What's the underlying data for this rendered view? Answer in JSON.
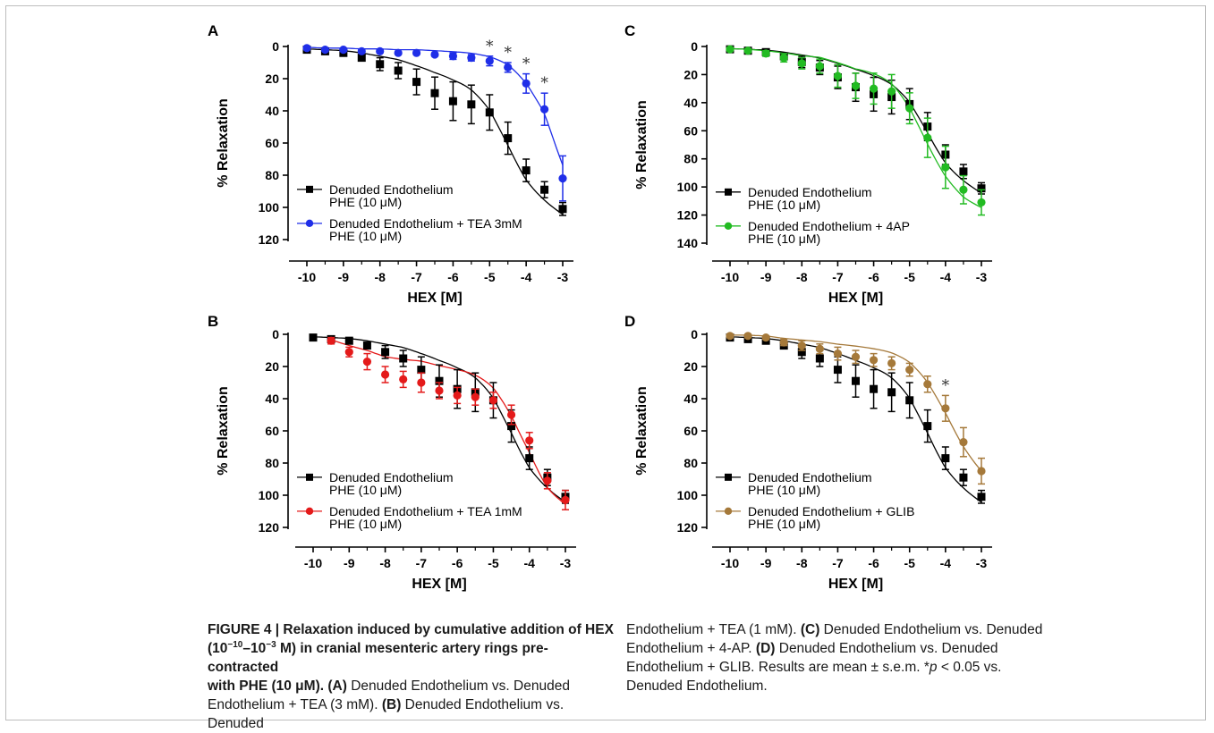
{
  "figure": {
    "caption_title": "FIGURE 4 | Relaxation induced by cumulative addition of HEX",
    "caption_title_2_pre": "(10",
    "caption_title_2_sup1": "−10",
    "caption_title_2_mid": "–10",
    "caption_title_2_sup2": "−3",
    "caption_title_2_post": " M) in cranial mesenteric artery rings pre-contracted",
    "caption_title_3": "with PHE (10 μM).",
    "caption_parts": [
      {
        "tag": "(A)",
        "text": " Denuded Endothelium vs. Denuded Endothelium + TEA (3 mM). "
      },
      {
        "tag": "(B)",
        "text": " Denuded Endothelium vs. Denuded Endothelium + TEA (1 mM). "
      },
      {
        "tag": "(C)",
        "text": " Denuded Endothelium vs. Denuded Endothelium + 4-AP. "
      },
      {
        "tag": "(D)",
        "text": " Denuded Endothelium vs. Denuded Endothelium + GLIB. Results are mean ± s.e.m. *p < 0.05 vs. Denuded Endothelium."
      }
    ],
    "caption_left_lines": [
      " Denuded Endothelium vs. Denuded",
      "Endothelium + TEA (3 mM). ",
      " Denuded Endothelium vs. Denuded"
    ],
    "caption_right_lines": [
      "Endothelium + TEA (1 mM). ",
      " Denuded Endothelium vs. Denuded",
      "Endothelium + 4-AP. ",
      " Denuded Endothelium vs. Denuded",
      "Endothelium + GLIB. Results are mean ± s.e.m. *",
      "p",
      " < 0.05 vs.",
      "Denuded Endothelium."
    ]
  },
  "chart_data": [
    {
      "panel": "A",
      "type": "scatter",
      "xlabel": "HEX [M]",
      "ylabel": "% Relaxation",
      "x_ticks": [
        -10,
        -9,
        -8,
        -7,
        -6,
        -5,
        -4,
        -3
      ],
      "y_ticks": [
        0,
        20,
        40,
        60,
        80,
        100,
        120
      ],
      "xlim": [
        -10,
        -3
      ],
      "ylim": [
        0,
        120
      ],
      "y_inverted": true,
      "legend": "bottom-left",
      "series": [
        {
          "name": "Denuded Endothelium PHE (10 μM)",
          "color": "#000000",
          "marker": "square",
          "x": [
            -10,
            -9.5,
            -9,
            -8.5,
            -8,
            -7.5,
            -7,
            -6.5,
            -6,
            -5.5,
            -5,
            -4.5,
            -4,
            -3.5,
            -3
          ],
          "y": [
            2,
            3,
            4,
            7,
            11,
            15,
            22,
            29,
            34,
            36,
            41,
            57,
            77,
            89,
            101
          ],
          "err": [
            1,
            1,
            2,
            2,
            4,
            5,
            8,
            10,
            12,
            12,
            11,
            10,
            7,
            5,
            4
          ]
        },
        {
          "name": "Denuded Endothelium + TEA 3mM PHE (10 μM)",
          "color": "#1f2ee8",
          "marker": "circle",
          "x": [
            -10,
            -9.5,
            -9,
            -8.5,
            -8,
            -7.5,
            -7,
            -6.5,
            -6,
            -5.5,
            -5,
            -4.5,
            -4,
            -3.5,
            -3
          ],
          "y": [
            1,
            2,
            2,
            3,
            3,
            4,
            4,
            5,
            6,
            7,
            9,
            13,
            23,
            39,
            82
          ],
          "err": [
            1,
            1,
            1,
            1,
            1,
            1,
            1,
            1,
            2,
            2,
            3,
            3,
            6,
            10,
            14
          ]
        }
      ],
      "significance_x": [
        -5,
        -4.5,
        -4,
        -3.5
      ],
      "significance_mark": "*"
    },
    {
      "panel": "B",
      "type": "scatter",
      "xlabel": "HEX [M]",
      "ylabel": "% Relaxation",
      "x_ticks": [
        -10,
        -9,
        -8,
        -7,
        -6,
        -5,
        -4,
        -3
      ],
      "y_ticks": [
        0,
        20,
        40,
        60,
        80,
        100,
        120
      ],
      "xlim": [
        -10,
        -3
      ],
      "ylim": [
        0,
        120
      ],
      "y_inverted": true,
      "legend": "bottom-left",
      "series": [
        {
          "name": "Denuded Endothelium PHE (10 μM)",
          "color": "#000000",
          "marker": "square",
          "x": [
            -10,
            -9.5,
            -9,
            -8.5,
            -8,
            -7.5,
            -7,
            -6.5,
            -6,
            -5.5,
            -5,
            -4.5,
            -4,
            -3.5,
            -3
          ],
          "y": [
            2,
            3,
            4,
            7,
            11,
            15,
            22,
            29,
            34,
            36,
            41,
            57,
            77,
            89,
            101
          ],
          "err": [
            1,
            1,
            2,
            2,
            4,
            5,
            8,
            10,
            12,
            12,
            11,
            10,
            7,
            5,
            4
          ]
        },
        {
          "name": "Denuded Endothelium + TEA 1mM PHE (10 μM)",
          "color": "#e41a1a",
          "marker": "circle",
          "x": [
            -9.5,
            -9,
            -8.5,
            -8,
            -7.5,
            -7,
            -6.5,
            -6,
            -5.5,
            -5,
            -4.5,
            -4,
            -3.5,
            -3
          ],
          "y": [
            4,
            11,
            17,
            25,
            28,
            30,
            35,
            38,
            39,
            41,
            50,
            66,
            91,
            103
          ],
          "err": [
            2,
            3,
            5,
            5,
            5,
            6,
            5,
            5,
            5,
            5,
            6,
            5,
            5,
            6
          ]
        }
      ]
    },
    {
      "panel": "C",
      "type": "scatter",
      "xlabel": "HEX [M]",
      "ylabel": "% Relaxation",
      "x_ticks": [
        -10,
        -9,
        -8,
        -7,
        -6,
        -5,
        -4,
        -3
      ],
      "y_ticks": [
        0,
        20,
        40,
        60,
        80,
        100,
        120,
        140
      ],
      "xlim": [
        -10,
        -3
      ],
      "ylim": [
        0,
        140
      ],
      "y_inverted": true,
      "legend": "bottom-left",
      "series": [
        {
          "name": "Denuded Endothelium PHE (10 μM)",
          "color": "#000000",
          "marker": "square",
          "x": [
            -10,
            -9.5,
            -9,
            -8.5,
            -8,
            -7.5,
            -7,
            -6.5,
            -6,
            -5.5,
            -5,
            -4.5,
            -4,
            -3.5,
            -3
          ],
          "y": [
            2,
            3,
            4,
            7,
            11,
            15,
            22,
            29,
            34,
            36,
            41,
            57,
            77,
            89,
            101
          ],
          "err": [
            1,
            1,
            2,
            2,
            4,
            5,
            8,
            10,
            12,
            12,
            11,
            10,
            7,
            5,
            4
          ]
        },
        {
          "name": "Denuded Endothelium + 4AP PHE (10 μM)",
          "color": "#22bb22",
          "marker": "circle",
          "x": [
            -10,
            -9.5,
            -9,
            -8.5,
            -8,
            -7.5,
            -7,
            -6.5,
            -6,
            -5.5,
            -5,
            -4.5,
            -4,
            -3.5,
            -3
          ],
          "y": [
            2,
            3,
            5,
            8,
            12,
            14,
            21,
            28,
            30,
            32,
            44,
            65,
            86,
            102,
            111
          ],
          "err": [
            1,
            1,
            2,
            3,
            4,
            5,
            8,
            9,
            11,
            12,
            11,
            14,
            15,
            10,
            9
          ]
        }
      ]
    },
    {
      "panel": "D",
      "type": "scatter",
      "xlabel": "HEX [M]",
      "ylabel": "% Relaxation",
      "x_ticks": [
        -10,
        -9,
        -8,
        -7,
        -6,
        -5,
        -4,
        -3
      ],
      "y_ticks": [
        0,
        20,
        40,
        60,
        80,
        100,
        120
      ],
      "xlim": [
        -10,
        -3
      ],
      "ylim": [
        0,
        120
      ],
      "y_inverted": true,
      "legend": "bottom-left",
      "series": [
        {
          "name": "Denuded Endothelium PHE (10 μM)",
          "color": "#000000",
          "marker": "square",
          "x": [
            -10,
            -9.5,
            -9,
            -8.5,
            -8,
            -7.5,
            -7,
            -6.5,
            -6,
            -5.5,
            -5,
            -4.5,
            -4,
            -3.5,
            -3
          ],
          "y": [
            2,
            3,
            4,
            7,
            11,
            15,
            22,
            29,
            34,
            36,
            41,
            57,
            77,
            89,
            101
          ],
          "err": [
            1,
            1,
            2,
            2,
            4,
            5,
            8,
            10,
            12,
            12,
            11,
            10,
            7,
            5,
            4
          ]
        },
        {
          "name": "Denuded Endothelium + GLIB PHE (10 μM)",
          "color": "#a5793a",
          "marker": "circle",
          "x": [
            -10,
            -9.5,
            -9,
            -8.5,
            -8,
            -7.5,
            -7,
            -6.5,
            -6,
            -5.5,
            -5,
            -4.5,
            -4,
            -3.5,
            -3
          ],
          "y": [
            1,
            1,
            2,
            5,
            7,
            9,
            12,
            14,
            16,
            18,
            22,
            31,
            46,
            67,
            85
          ],
          "err": [
            1,
            1,
            1,
            2,
            3,
            3,
            4,
            4,
            4,
            4,
            4,
            5,
            8,
            9,
            8
          ]
        }
      ],
      "significance_x": [
        -4
      ],
      "significance_mark": "*"
    }
  ]
}
